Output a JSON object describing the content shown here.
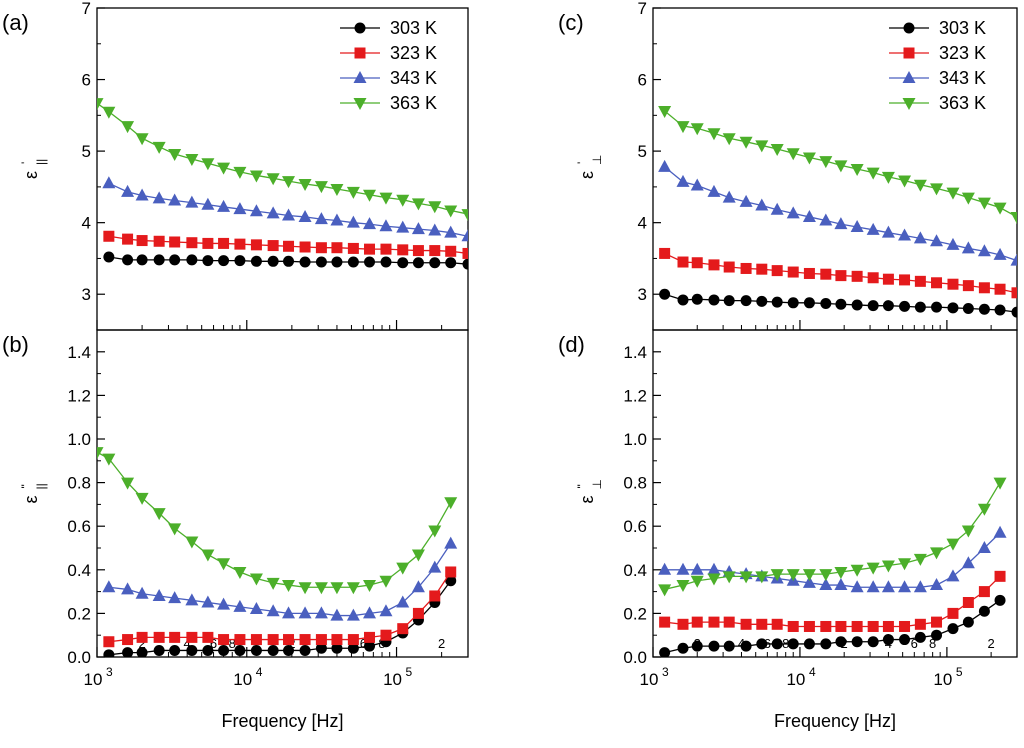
{
  "colors": {
    "303 K": "#000000",
    "323 K": "#e41a1c",
    "343 K": "#4a5fbf",
    "363 K": "#4caf2a"
  },
  "chart_data": [
    {
      "id": "a",
      "type": "line",
      "panel_label": "(a)",
      "ylabel": "ε||'",
      "ylabel_main": "ε",
      "ylabel_sub": "||",
      "ylabel_prime": "'",
      "xscale": "log",
      "xlim": [
        1000,
        300000
      ],
      "ylim": [
        2.5,
        7
      ],
      "yticks": [
        3,
        4,
        5,
        6,
        7
      ],
      "ytick_labels": [
        "3",
        "4",
        "5",
        "6",
        "7"
      ],
      "legend": [
        "303 K",
        "323 K",
        "343 K",
        "363 K"
      ],
      "legend_position": "top-right",
      "x": [
        1000,
        1200,
        1600,
        2000,
        2600,
        3300,
        4300,
        5500,
        7000,
        9000,
        11600,
        15000,
        19000,
        24500,
        31500,
        40000,
        51500,
        66000,
        85000,
        110000,
        140000,
        180000,
        230000,
        300000
      ],
      "series": [
        {
          "name": "303 K",
          "marker": "circle",
          "values": [
            null,
            3.52,
            3.48,
            3.48,
            3.48,
            3.48,
            3.48,
            3.47,
            3.47,
            3.47,
            3.46,
            3.46,
            3.46,
            3.45,
            3.45,
            3.45,
            3.45,
            3.45,
            3.45,
            3.44,
            3.44,
            3.44,
            3.44,
            3.42
          ]
        },
        {
          "name": "323 K",
          "marker": "square",
          "values": [
            null,
            3.81,
            3.77,
            3.75,
            3.74,
            3.73,
            3.72,
            3.71,
            3.71,
            3.7,
            3.69,
            3.68,
            3.67,
            3.66,
            3.65,
            3.65,
            3.64,
            3.63,
            3.63,
            3.62,
            3.61,
            3.61,
            3.6,
            3.57
          ]
        },
        {
          "name": "343 K",
          "marker": "triangle-up",
          "values": [
            null,
            4.55,
            4.43,
            4.38,
            4.34,
            4.31,
            4.28,
            4.25,
            4.22,
            4.19,
            4.16,
            4.13,
            4.1,
            4.08,
            4.05,
            4.03,
            4.0,
            3.98,
            3.95,
            3.93,
            3.91,
            3.89,
            3.86,
            3.81
          ]
        },
        {
          "name": "363 K",
          "marker": "triangle-down",
          "values": [
            5.67,
            5.55,
            5.35,
            5.18,
            5.06,
            4.96,
            4.89,
            4.83,
            4.77,
            4.71,
            4.66,
            4.62,
            4.58,
            4.54,
            4.51,
            4.47,
            4.43,
            4.39,
            4.35,
            4.32,
            4.27,
            4.23,
            4.17,
            4.12
          ]
        }
      ]
    },
    {
      "id": "b",
      "type": "line",
      "panel_label": "(b)",
      "ylabel": "ε||\"",
      "ylabel_main": "ε",
      "ylabel_sub": "||",
      "ylabel_prime": "\"",
      "xscale": "log",
      "xlim": [
        1000,
        300000
      ],
      "ylim": [
        0,
        1.5
      ],
      "yticks": [
        0,
        0.2,
        0.4,
        0.6,
        0.8,
        1.0,
        1.2,
        1.4
      ],
      "ytick_labels": [
        "0.0",
        "0.2",
        "0.4",
        "0.6",
        "0.8",
        "1.0",
        "1.2",
        "1.4"
      ],
      "xlabel": "Frequency [Hz]",
      "x": [
        1000,
        1200,
        1600,
        2000,
        2600,
        3300,
        4300,
        5500,
        7000,
        9000,
        11600,
        15000,
        19000,
        24500,
        31500,
        40000,
        51500,
        66000,
        85000,
        110000,
        140000,
        180000,
        230000,
        300000
      ],
      "series": [
        {
          "name": "303 K",
          "marker": "circle",
          "values": [
            null,
            0.01,
            0.02,
            0.02,
            0.03,
            0.03,
            0.03,
            0.03,
            0.03,
            0.03,
            0.03,
            0.03,
            0.03,
            0.03,
            0.04,
            0.04,
            0.04,
            0.05,
            0.07,
            0.11,
            0.17,
            0.25,
            0.35,
            null
          ]
        },
        {
          "name": "323 K",
          "marker": "square",
          "values": [
            null,
            0.07,
            0.08,
            0.09,
            0.09,
            0.09,
            0.09,
            0.09,
            0.08,
            0.08,
            0.08,
            0.08,
            0.08,
            0.08,
            0.08,
            0.08,
            0.08,
            0.09,
            0.1,
            0.13,
            0.2,
            0.28,
            0.39,
            null
          ]
        },
        {
          "name": "343 K",
          "marker": "triangle-up",
          "values": [
            null,
            0.32,
            0.31,
            0.29,
            0.28,
            0.27,
            0.26,
            0.25,
            0.24,
            0.23,
            0.22,
            0.21,
            0.2,
            0.2,
            0.2,
            0.19,
            0.19,
            0.2,
            0.21,
            0.25,
            0.32,
            0.41,
            0.52,
            null
          ]
        },
        {
          "name": "363 K",
          "marker": "triangle-down",
          "values": [
            0.94,
            0.91,
            0.8,
            0.73,
            0.66,
            0.59,
            0.53,
            0.47,
            0.43,
            0.39,
            0.36,
            0.34,
            0.33,
            0.32,
            0.32,
            0.32,
            0.32,
            0.33,
            0.35,
            0.41,
            0.47,
            0.58,
            0.71,
            null
          ]
        }
      ]
    },
    {
      "id": "c",
      "type": "line",
      "panel_label": "(c)",
      "ylabel": "ε⊥'",
      "ylabel_main": "ε",
      "ylabel_sub": "⊥",
      "ylabel_prime": "'",
      "xscale": "log",
      "xlim": [
        1000,
        300000
      ],
      "ylim": [
        2.5,
        7
      ],
      "yticks": [
        3,
        4,
        5,
        6,
        7
      ],
      "ytick_labels": [
        "3",
        "4",
        "5",
        "6",
        "7"
      ],
      "legend": [
        "303 K",
        "323 K",
        "343 K",
        "363 K"
      ],
      "legend_position": "top-right",
      "x": [
        1000,
        1200,
        1600,
        2000,
        2600,
        3300,
        4300,
        5500,
        7000,
        9000,
        11600,
        15000,
        19000,
        24500,
        31500,
        40000,
        51500,
        66000,
        85000,
        110000,
        140000,
        180000,
        230000,
        300000
      ],
      "series": [
        {
          "name": "303 K",
          "marker": "circle",
          "values": [
            null,
            3.0,
            2.92,
            2.93,
            2.92,
            2.91,
            2.91,
            2.9,
            2.89,
            2.88,
            2.88,
            2.87,
            2.86,
            2.85,
            2.84,
            2.84,
            2.83,
            2.82,
            2.82,
            2.81,
            2.8,
            2.79,
            2.78,
            2.75
          ]
        },
        {
          "name": "323 K",
          "marker": "square",
          "values": [
            null,
            3.57,
            3.45,
            3.44,
            3.41,
            3.38,
            3.36,
            3.35,
            3.33,
            3.31,
            3.29,
            3.28,
            3.26,
            3.25,
            3.23,
            3.21,
            3.2,
            3.18,
            3.16,
            3.14,
            3.12,
            3.09,
            3.07,
            3.02
          ]
        },
        {
          "name": "343 K",
          "marker": "triangle-up",
          "values": [
            null,
            4.78,
            4.57,
            4.52,
            4.43,
            4.35,
            4.29,
            4.24,
            4.18,
            4.13,
            4.08,
            4.03,
            3.98,
            3.94,
            3.9,
            3.86,
            3.82,
            3.78,
            3.74,
            3.69,
            3.64,
            3.6,
            3.55,
            3.47
          ]
        },
        {
          "name": "363 K",
          "marker": "triangle-down",
          "values": [
            null,
            5.56,
            5.35,
            5.32,
            5.25,
            5.18,
            5.13,
            5.08,
            5.03,
            4.97,
            4.91,
            4.86,
            4.8,
            4.75,
            4.7,
            4.64,
            4.59,
            4.53,
            4.48,
            4.42,
            4.35,
            4.28,
            4.21,
            4.08
          ]
        }
      ]
    },
    {
      "id": "d",
      "type": "line",
      "panel_label": "(d)",
      "ylabel": "ε⊥\"",
      "ylabel_main": "ε",
      "ylabel_sub": "⊥",
      "ylabel_prime": "\"",
      "xscale": "log",
      "xlim": [
        1000,
        300000
      ],
      "ylim": [
        0,
        1.5
      ],
      "yticks": [
        0,
        0.2,
        0.4,
        0.6,
        0.8,
        1.0,
        1.2,
        1.4
      ],
      "ytick_labels": [
        "0.0",
        "0.2",
        "0.4",
        "0.6",
        "0.8",
        "1.0",
        "1.2",
        "1.4"
      ],
      "xlabel": "Frequency [Hz]",
      "x": [
        1000,
        1200,
        1600,
        2000,
        2600,
        3300,
        4300,
        5500,
        7000,
        9000,
        11600,
        15000,
        19000,
        24500,
        31500,
        40000,
        51500,
        66000,
        85000,
        110000,
        140000,
        180000,
        230000,
        300000
      ],
      "series": [
        {
          "name": "303 K",
          "marker": "circle",
          "values": [
            null,
            0.02,
            0.04,
            0.05,
            0.05,
            0.05,
            0.05,
            0.06,
            0.06,
            0.06,
            0.06,
            0.06,
            0.07,
            0.07,
            0.07,
            0.08,
            0.08,
            0.09,
            0.1,
            0.13,
            0.16,
            0.21,
            0.26,
            null
          ]
        },
        {
          "name": "323 K",
          "marker": "square",
          "values": [
            null,
            0.16,
            0.15,
            0.16,
            0.16,
            0.16,
            0.15,
            0.15,
            0.15,
            0.14,
            0.14,
            0.14,
            0.14,
            0.14,
            0.14,
            0.14,
            0.14,
            0.15,
            0.16,
            0.2,
            0.25,
            0.3,
            0.37,
            null
          ]
        },
        {
          "name": "343 K",
          "marker": "triangle-up",
          "values": [
            null,
            0.4,
            0.4,
            0.4,
            0.4,
            0.39,
            0.38,
            0.37,
            0.36,
            0.35,
            0.34,
            0.33,
            0.33,
            0.32,
            0.32,
            0.32,
            0.32,
            0.32,
            0.33,
            0.37,
            0.43,
            0.5,
            0.57,
            null
          ]
        },
        {
          "name": "363 K",
          "marker": "triangle-down",
          "values": [
            null,
            0.31,
            0.33,
            0.35,
            0.36,
            0.37,
            0.37,
            0.37,
            0.38,
            0.38,
            0.38,
            0.38,
            0.39,
            0.4,
            0.41,
            0.42,
            0.43,
            0.45,
            0.48,
            0.52,
            0.58,
            0.68,
            0.8,
            null
          ]
        }
      ]
    }
  ],
  "xaxis": {
    "major_ticks": [
      1000,
      10000,
      100000
    ],
    "major_labels": [
      {
        "base": "10",
        "exp": "3"
      },
      {
        "base": "10",
        "exp": "4"
      },
      {
        "base": "10",
        "exp": "5"
      }
    ],
    "minor_ticks": [
      2000,
      3000,
      4000,
      5000,
      6000,
      7000,
      8000,
      9000,
      20000,
      30000,
      40000,
      50000,
      60000,
      70000,
      80000,
      90000,
      200000,
      300000
    ],
    "minor_labels": [
      {
        "value": 2000,
        "text": "2"
      },
      {
        "value": 4000,
        "text": "4"
      },
      {
        "value": 6000,
        "text": "6"
      },
      {
        "value": 8000,
        "text": "8"
      },
      {
        "value": 20000,
        "text": "2"
      },
      {
        "value": 40000,
        "text": "4"
      },
      {
        "value": 60000,
        "text": "6"
      },
      {
        "value": 80000,
        "text": "8"
      },
      {
        "value": 200000,
        "text": "2"
      }
    ]
  }
}
